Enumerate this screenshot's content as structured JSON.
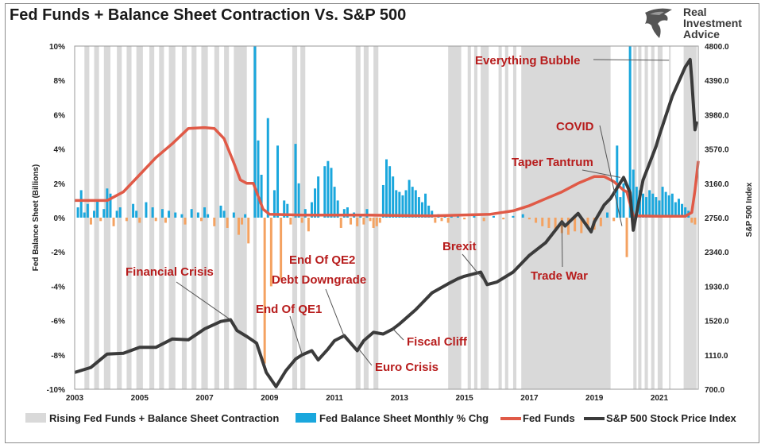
{
  "title": "Fed Funds + Balance Sheet Contraction Vs. S&P 500",
  "logo": {
    "line1": "Real",
    "line2": "Investment",
    "line3": "Advice"
  },
  "colors": {
    "shade": "#d9d9d9",
    "bs_pos": "#1aa7dd",
    "bs_neg": "#f4a261",
    "fed_funds": "#e05a47",
    "spx": "#3b3b3b",
    "annotation": "#b71c1c"
  },
  "chart_data": {
    "type": "line",
    "x_range": [
      2003.0,
      2022.2
    ],
    "x_ticks": [
      "2003",
      "2005",
      "2007",
      "2009",
      "2011",
      "2013",
      "2015",
      "2017",
      "2019",
      "2021"
    ],
    "left_axis": {
      "label": "Fed Balance Sheet (Billions)",
      "range": [
        -10,
        10
      ],
      "ticks": [
        "-10%",
        "-8%",
        "-6%",
        "-4%",
        "-2%",
        "0%",
        "2%",
        "4%",
        "6%",
        "8%",
        "10%"
      ]
    },
    "right_axis": {
      "label": "S&P 500 Index",
      "range": [
        700,
        4800
      ],
      "ticks": [
        "700.0",
        "1110.0",
        "1520.0",
        "1930.0",
        "2340.0",
        "2750.0",
        "3160.0",
        "3570.0",
        "3980.0",
        "4390.0",
        "4800.0"
      ]
    },
    "shaded_periods": [
      [
        2003.3,
        2003.45
      ],
      [
        2003.6,
        2003.75
      ],
      [
        2003.9,
        2004.1
      ],
      [
        2004.3,
        2004.45
      ],
      [
        2004.6,
        2004.75
      ],
      [
        2004.9,
        2005.1
      ],
      [
        2005.3,
        2005.45
      ],
      [
        2005.6,
        2005.75
      ],
      [
        2005.9,
        2006.1
      ],
      [
        2006.3,
        2006.45
      ],
      [
        2006.6,
        2006.75
      ],
      [
        2006.9,
        2007.1
      ],
      [
        2007.3,
        2007.45
      ],
      [
        2007.6,
        2007.75
      ],
      [
        2007.9,
        2008.3
      ],
      [
        2008.5,
        2008.6
      ],
      [
        2009.7,
        2009.85
      ],
      [
        2009.95,
        2010.1
      ],
      [
        2011.65,
        2011.8
      ],
      [
        2011.9,
        2012.05
      ],
      [
        2012.2,
        2012.35
      ],
      [
        2014.5,
        2014.9
      ],
      [
        2015.1,
        2015.2
      ],
      [
        2015.3,
        2015.4
      ],
      [
        2015.5,
        2015.75
      ],
      [
        2016.05,
        2016.15
      ],
      [
        2016.25,
        2016.35
      ],
      [
        2016.5,
        2016.6
      ],
      [
        2016.75,
        2019.5
      ],
      [
        2020.2,
        2020.3
      ],
      [
        2020.35,
        2020.45
      ],
      [
        2020.55,
        2020.65
      ],
      [
        2020.75,
        2020.85
      ],
      [
        2020.95,
        2021.1
      ],
      [
        2021.3,
        2021.35
      ],
      [
        2021.75,
        2022.15
      ]
    ],
    "series": [
      {
        "name": "Rising Fed Funds + Balance Sheet Contraction",
        "type": "shade"
      },
      {
        "name": "Fed Balance Sheet Monthly % Chg",
        "type": "bar",
        "axis": "left",
        "x": [
          2003.1,
          2003.2,
          2003.3,
          2003.4,
          2003.5,
          2003.6,
          2003.7,
          2003.8,
          2003.9,
          2004.0,
          2004.1,
          2004.2,
          2004.3,
          2004.4,
          2004.6,
          2004.8,
          2004.9,
          2005.0,
          2005.2,
          2005.4,
          2005.5,
          2005.7,
          2005.8,
          2005.9,
          2006.1,
          2006.3,
          2006.4,
          2006.6,
          2006.8,
          2006.9,
          2007.0,
          2007.1,
          2007.3,
          2007.5,
          2007.6,
          2007.7,
          2007.9,
          2008.05,
          2008.15,
          2008.25,
          2008.35,
          2008.55,
          2008.65,
          2008.75,
          2008.85,
          2008.95,
          2009.05,
          2009.15,
          2009.25,
          2009.35,
          2009.45,
          2009.55,
          2009.65,
          2009.8,
          2009.9,
          2010.0,
          2010.1,
          2010.2,
          2010.3,
          2010.4,
          2010.5,
          2010.7,
          2010.8,
          2010.9,
          2011.0,
          2011.1,
          2011.2,
          2011.3,
          2011.4,
          2011.5,
          2011.6,
          2011.7,
          2011.8,
          2011.9,
          2012.0,
          2012.1,
          2012.2,
          2012.3,
          2012.4,
          2012.5,
          2012.6,
          2012.7,
          2012.8,
          2012.9,
          2013.0,
          2013.1,
          2013.2,
          2013.3,
          2013.4,
          2013.5,
          2013.6,
          2013.7,
          2013.8,
          2013.9,
          2014.0,
          2014.1,
          2014.2,
          2014.3,
          2014.4,
          2014.5,
          2014.6,
          2014.8,
          2015.0,
          2015.3,
          2015.6,
          2015.9,
          2016.2,
          2016.5,
          2016.8,
          2017.0,
          2017.2,
          2017.4,
          2017.6,
          2017.8,
          2018.0,
          2018.2,
          2018.4,
          2018.6,
          2018.8,
          2019.0,
          2019.2,
          2019.4,
          2019.6,
          2019.7,
          2019.8,
          2019.9,
          2020.0,
          2020.1,
          2020.2,
          2020.3,
          2020.4,
          2020.5,
          2020.6,
          2020.7,
          2020.8,
          2020.9,
          2021.0,
          2021.1,
          2021.2,
          2021.3,
          2021.4,
          2021.5,
          2021.6,
          2021.7,
          2021.8,
          2021.9,
          2022.0,
          2022.1
        ],
        "values": [
          0.6,
          1.6,
          0.3,
          0.8,
          -0.4,
          0.4,
          1.0,
          -0.2,
          0.5,
          1.7,
          1.4,
          -0.5,
          0.4,
          0.6,
          -0.2,
          0.8,
          0.4,
          -0.3,
          0.9,
          0.6,
          -0.2,
          0.5,
          -0.3,
          0.4,
          0.3,
          0.2,
          -0.4,
          0.5,
          0.3,
          -0.2,
          0.6,
          0.2,
          -0.5,
          0.7,
          0.4,
          -0.6,
          0.3,
          -1.0,
          -0.4,
          0.2,
          -1.5,
          10,
          4.5,
          2.5,
          -8.5,
          5.8,
          -4.0,
          1.6,
          4.2,
          -3.6,
          1.0,
          0.8,
          -0.4,
          4.3,
          2.0,
          -0.3,
          0.5,
          -0.8,
          0.9,
          1.7,
          2.4,
          3.0,
          3.3,
          2.9,
          1.8,
          1.0,
          -0.6,
          0.5,
          0.6,
          -0.4,
          0.3,
          -0.5,
          0.2,
          -0.4,
          0.5,
          -0.2,
          -0.6,
          -0.5,
          -0.3,
          1.9,
          3.4,
          3.0,
          2.4,
          1.6,
          1.5,
          1.3,
          1.6,
          2.2,
          1.8,
          1.6,
          1.2,
          0.9,
          1.4,
          0.7,
          0.4,
          -0.3,
          0.2,
          -0.2,
          0.1,
          -0.3,
          0.2,
          0.1,
          -0.1,
          0.1,
          -0.2,
          0.1,
          -0.1,
          0.1,
          0.2,
          -0.1,
          -0.3,
          -0.5,
          -0.6,
          -0.8,
          -0.9,
          -1.0,
          -0.8,
          -0.9,
          -0.6,
          -0.7,
          -0.5,
          0.3,
          -0.2,
          4.2,
          1.2,
          2.0,
          -2.3,
          10,
          2.8,
          1.8,
          1.6,
          1.4,
          1.2,
          1.6,
          1.4,
          1.2,
          1.0,
          1.8,
          1.5,
          1.3,
          1.4,
          0.9,
          1.1,
          0.8,
          0.6,
          0.4,
          -0.3,
          -0.4
        ]
      },
      {
        "name": "Fed Funds",
        "type": "line",
        "axis": "left",
        "x": [
          2003.0,
          2003.5,
          2004.0,
          2004.5,
          2005.0,
          2005.5,
          2006.0,
          2006.5,
          2007.0,
          2007.3,
          2007.6,
          2007.9,
          2008.1,
          2008.3,
          2008.5,
          2008.8,
          2009.0,
          2010.0,
          2012.0,
          2014.0,
          2015.8,
          2016.5,
          2017.0,
          2017.5,
          2018.0,
          2018.5,
          2019.0,
          2019.3,
          2019.6,
          2019.9,
          2020.0,
          2020.2,
          2021.0,
          2021.8,
          2022.0,
          2022.1,
          2022.2
        ],
        "values": [
          1.0,
          1.0,
          1.0,
          1.5,
          2.5,
          3.5,
          4.3,
          5.2,
          5.25,
          5.2,
          4.6,
          3.2,
          2.2,
          2.0,
          2.0,
          0.5,
          0.2,
          0.15,
          0.15,
          0.1,
          0.2,
          0.4,
          0.7,
          1.1,
          1.5,
          2.0,
          2.4,
          2.4,
          2.1,
          1.6,
          1.5,
          0.1,
          0.08,
          0.08,
          0.3,
          1.6,
          3.3
        ]
      },
      {
        "name": "S&P 500 Stock Price Index",
        "type": "line",
        "axis": "right",
        "x": [
          2003.0,
          2003.5,
          2004.0,
          2004.5,
          2005.0,
          2005.5,
          2006.0,
          2006.5,
          2007.0,
          2007.5,
          2007.8,
          2008.0,
          2008.3,
          2008.6,
          2008.9,
          2009.2,
          2009.5,
          2009.8,
          2010.0,
          2010.3,
          2010.5,
          2010.8,
          2011.0,
          2011.3,
          2011.7,
          2011.9,
          2012.2,
          2012.5,
          2012.8,
          2013.0,
          2013.5,
          2014.0,
          2014.5,
          2014.8,
          2015.0,
          2015.5,
          2015.7,
          2016.0,
          2016.5,
          2017.0,
          2017.5,
          2018.0,
          2018.1,
          2018.5,
          2018.9,
          2019.0,
          2019.3,
          2019.5,
          2019.9,
          2020.1,
          2020.2,
          2020.5,
          2020.7,
          2020.9,
          2021.0,
          2021.4,
          2021.8,
          2021.95,
          2022.0,
          2022.1,
          2022.15
        ],
        "values": [
          900,
          960,
          1120,
          1130,
          1200,
          1200,
          1300,
          1290,
          1420,
          1510,
          1530,
          1400,
          1330,
          1250,
          900,
          730,
          920,
          1060,
          1110,
          1160,
          1050,
          1180,
          1280,
          1340,
          1160,
          1280,
          1380,
          1360,
          1420,
          1480,
          1650,
          1850,
          1960,
          2020,
          2050,
          2100,
          1950,
          1980,
          2100,
          2300,
          2450,
          2700,
          2650,
          2800,
          2580,
          2700,
          2900,
          2980,
          3230,
          3050,
          2600,
          3200,
          3400,
          3600,
          3730,
          4200,
          4550,
          4640,
          4400,
          3800,
          3900
        ]
      }
    ],
    "annotations": [
      {
        "text": "Everything Bubble",
        "x": 2021.3,
        "y_right": 4630
      },
      {
        "text": "COVID",
        "x": 2019.8,
        "y_right": 2650
      },
      {
        "text": "Taper Tantrum",
        "x": 2019.8,
        "y_right": 3230
      },
      {
        "text": "Financial Crisis",
        "x": 2007.8,
        "y_right": 1530
      },
      {
        "text": "End Of QE2",
        "x": 2011.2,
        "y_right": 1340
      },
      {
        "text": "Debt Downgrade",
        "x": 2011.2,
        "y_right": 1340
      },
      {
        "text": "End Of QE1",
        "x": 2010.0,
        "y_right": 1110
      },
      {
        "text": "Brexit",
        "x": 2015.6,
        "y_right": 2000
      },
      {
        "text": "Trade War",
        "x": 2018.1,
        "y_right": 2700
      },
      {
        "text": "Fiscal Cliff",
        "x": 2012.8,
        "y_right": 1420
      },
      {
        "text": "Euro Crisis",
        "x": 2011.7,
        "y_right": 1160
      }
    ]
  }
}
